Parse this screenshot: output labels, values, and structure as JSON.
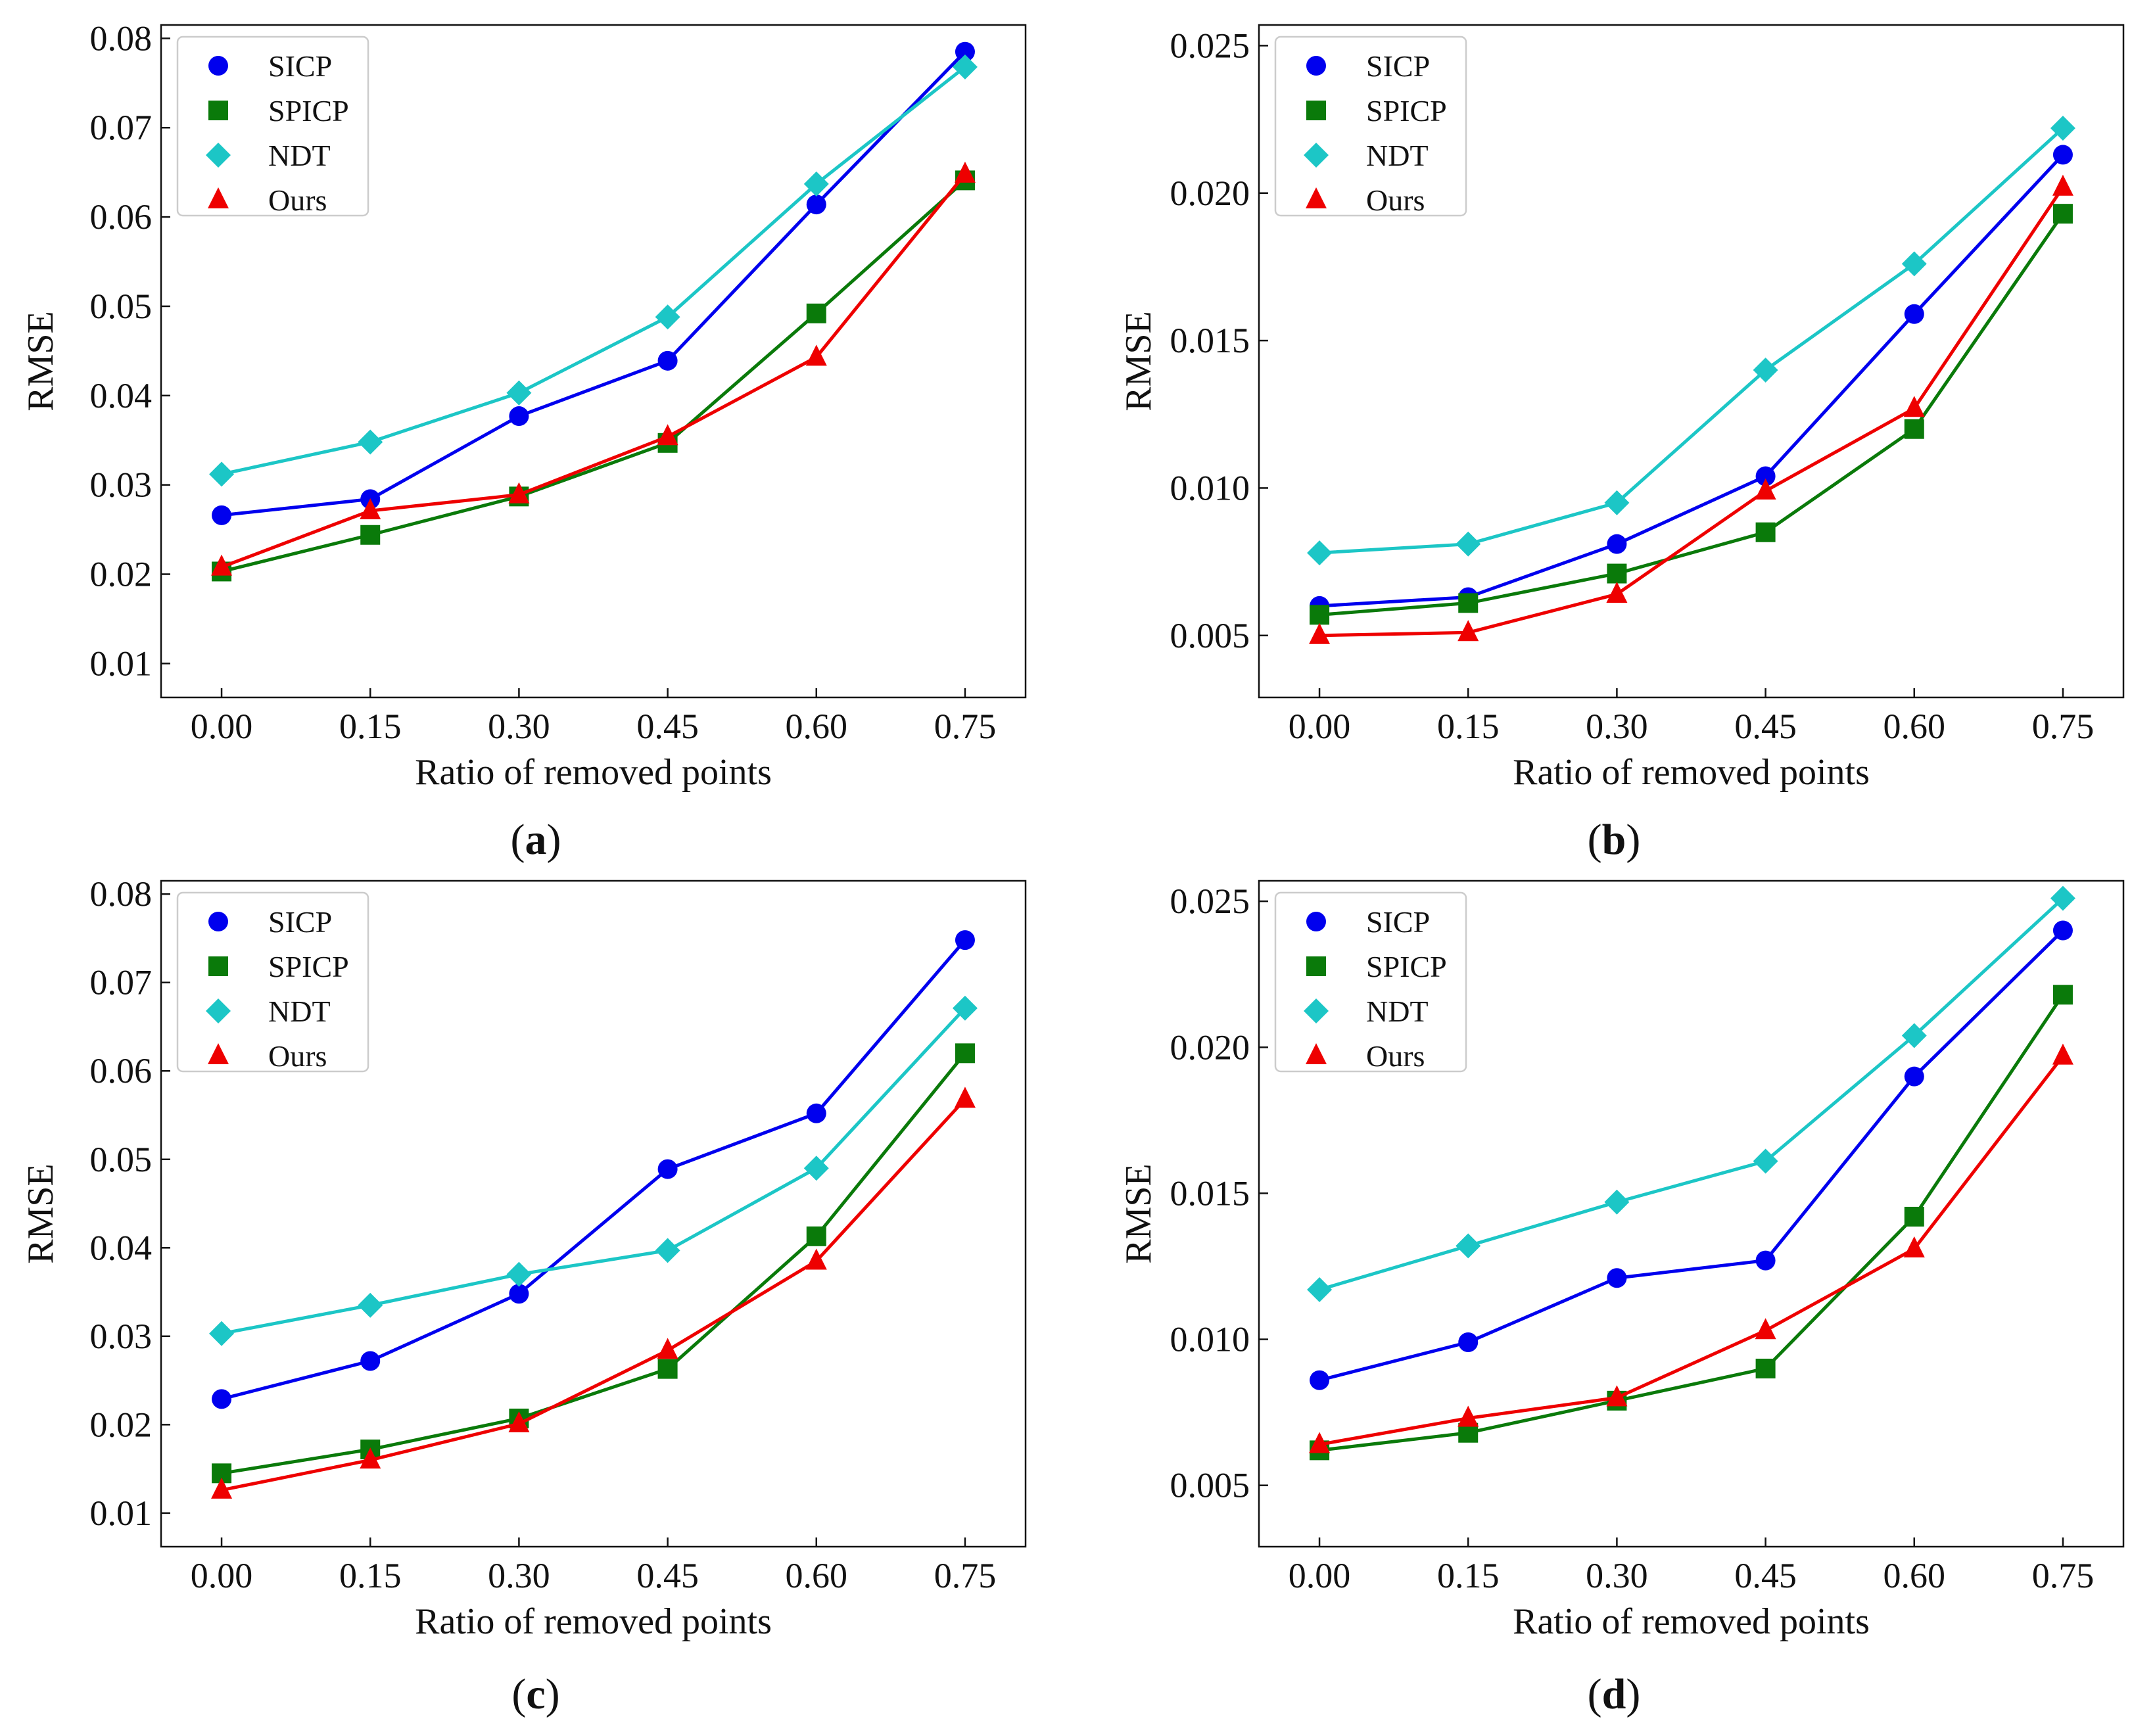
{
  "figure": {
    "captions": [
      "a",
      "b",
      "c",
      "d"
    ]
  },
  "styles": {
    "series_colors": {
      "SICP": "#0000ee",
      "SPICP": "#0a7a0a",
      "NDT": "#1cc6c6",
      "Ours": "#ee0000"
    },
    "series_markers": {
      "SICP": "circle",
      "SPICP": "square",
      "NDT": "diamond",
      "Ours": "triangle"
    }
  },
  "chart_data": [
    {
      "type": "line",
      "panel": "a",
      "xlabel": "Ratio of removed points",
      "ylabel": "RMSE",
      "categories": [
        "0.00",
        "0.15",
        "0.30",
        "0.45",
        "0.60",
        "0.75"
      ],
      "ylim": [
        0.0062,
        0.0815
      ],
      "yticks": [
        "0.01",
        "0.02",
        "0.03",
        "0.04",
        "0.05",
        "0.06",
        "0.07",
        "0.08"
      ],
      "ytick_values": [
        0.01,
        0.02,
        0.03,
        0.04,
        0.05,
        0.06,
        0.07,
        0.08
      ],
      "legend": "top-left",
      "series": [
        {
          "name": "SICP",
          "values": [
            0.0266,
            0.0284,
            0.0377,
            0.0439,
            0.0614,
            0.0785
          ]
        },
        {
          "name": "SPICP",
          "values": [
            0.0203,
            0.0244,
            0.0287,
            0.0347,
            0.0492,
            0.0641
          ]
        },
        {
          "name": "NDT",
          "values": [
            0.0312,
            0.0348,
            0.0403,
            0.0488,
            0.0637,
            0.0768
          ]
        },
        {
          "name": "Ours",
          "values": [
            0.0208,
            0.0271,
            0.0289,
            0.0354,
            0.0443,
            0.0648
          ]
        }
      ]
    },
    {
      "type": "line",
      "panel": "b",
      "xlabel": "Ratio of removed points",
      "ylabel": "RMSE",
      "categories": [
        "0.00",
        "0.15",
        "0.30",
        "0.45",
        "0.60",
        "0.75"
      ],
      "ylim": [
        0.0029,
        0.0257
      ],
      "yticks": [
        "0.005",
        "0.010",
        "0.015",
        "0.020",
        "0.025"
      ],
      "ytick_values": [
        0.005,
        0.01,
        0.015,
        0.02,
        0.025
      ],
      "legend": "top-left",
      "series": [
        {
          "name": "SICP",
          "values": [
            0.006,
            0.0063,
            0.0081,
            0.0104,
            0.0159,
            0.0213
          ]
        },
        {
          "name": "SPICP",
          "values": [
            0.0057,
            0.0061,
            0.0071,
            0.0085,
            0.012,
            0.0193
          ]
        },
        {
          "name": "NDT",
          "values": [
            0.0078,
            0.0081,
            0.0095,
            0.014,
            0.0176,
            0.0222
          ]
        },
        {
          "name": "Ours",
          "values": [
            0.005,
            0.0051,
            0.0064,
            0.0099,
            0.0127,
            0.0202
          ]
        }
      ]
    },
    {
      "type": "line",
      "panel": "c",
      "xlabel": "Ratio of removed points",
      "ylabel": "RMSE",
      "categories": [
        "0.00",
        "0.15",
        "0.30",
        "0.45",
        "0.60",
        "0.75"
      ],
      "ylim": [
        0.0062,
        0.0815
      ],
      "yticks": [
        "0.01",
        "0.02",
        "0.03",
        "0.04",
        "0.05",
        "0.06",
        "0.07",
        "0.08"
      ],
      "ytick_values": [
        0.01,
        0.02,
        0.03,
        0.04,
        0.05,
        0.06,
        0.07,
        0.08
      ],
      "legend": "top-left",
      "series": [
        {
          "name": "SICP",
          "values": [
            0.0229,
            0.0272,
            0.0348,
            0.0489,
            0.0552,
            0.0748
          ]
        },
        {
          "name": "SPICP",
          "values": [
            0.0145,
            0.0172,
            0.0207,
            0.0263,
            0.0413,
            0.062
          ]
        },
        {
          "name": "NDT",
          "values": [
            0.0303,
            0.0335,
            0.037,
            0.0397,
            0.049,
            0.0671
          ]
        },
        {
          "name": "Ours",
          "values": [
            0.0126,
            0.016,
            0.0201,
            0.0284,
            0.0385,
            0.0568
          ]
        }
      ]
    },
    {
      "type": "line",
      "panel": "d",
      "xlabel": "Ratio of removed points",
      "ylabel": "RMSE",
      "categories": [
        "0.00",
        "0.15",
        "0.30",
        "0.45",
        "0.60",
        "0.75"
      ],
      "ylim": [
        0.0029,
        0.0257
      ],
      "yticks": [
        "0.005",
        "0.010",
        "0.015",
        "0.020",
        "0.025"
      ],
      "ytick_values": [
        0.005,
        0.01,
        0.015,
        0.02,
        0.025
      ],
      "legend": "top-left",
      "series": [
        {
          "name": "SICP",
          "values": [
            0.0086,
            0.0099,
            0.0121,
            0.0127,
            0.019,
            0.024
          ]
        },
        {
          "name": "SPICP",
          "values": [
            0.0062,
            0.0068,
            0.0079,
            0.009,
            0.0142,
            0.0218
          ]
        },
        {
          "name": "NDT",
          "values": [
            0.0117,
            0.0132,
            0.0147,
            0.0161,
            0.0204,
            0.0251
          ]
        },
        {
          "name": "Ours",
          "values": [
            0.0064,
            0.0073,
            0.008,
            0.0103,
            0.0131,
            0.0197
          ]
        }
      ]
    }
  ]
}
